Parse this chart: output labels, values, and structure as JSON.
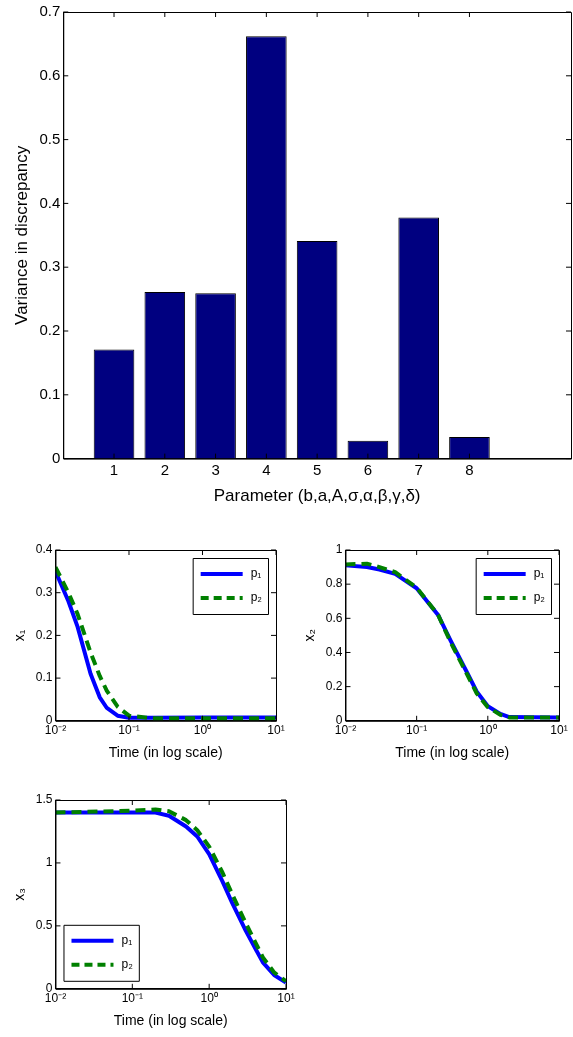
{
  "chart_data": [
    {
      "type": "bar",
      "xlabel": "Parameter (b,a,A,σ,α,β,γ,δ)",
      "ylabel": "Variance in discrepancy",
      "x": [
        1,
        2,
        3,
        4,
        5,
        6,
        7,
        8
      ],
      "values": [
        0.171,
        0.261,
        0.259,
        0.662,
        0.341,
        0.028,
        0.378,
        0.034
      ],
      "color": "#000080",
      "xlim": [
        0,
        10
      ],
      "xticks": [
        1,
        2,
        3,
        4,
        5,
        6,
        7,
        8
      ],
      "ylim": [
        0,
        0.7
      ],
      "yticks": [
        0,
        0.1,
        0.2,
        0.3,
        0.4,
        0.5,
        0.6,
        0.7
      ]
    },
    {
      "type": "line",
      "xlabel": "Time (in log scale)",
      "ylabel": "x₁",
      "log": "x",
      "legend": "top right",
      "x": [
        0.01,
        0.015,
        0.02,
        0.03,
        0.04,
        0.05,
        0.07,
        0.1,
        0.2,
        1,
        10
      ],
      "xlim": [
        0.01,
        10
      ],
      "xticks": [
        {
          "value": 0.01,
          "label": "10⁻²"
        },
        {
          "value": 0.1,
          "label": "10⁻¹"
        },
        {
          "value": 1,
          "label": "10⁰"
        },
        {
          "value": 10,
          "label": "10¹"
        }
      ],
      "ylim": [
        0,
        0.4
      ],
      "yticks": [
        0,
        0.1,
        0.2,
        0.3,
        0.4
      ],
      "series": [
        {
          "name": "p₁",
          "color": "#0000ff",
          "line_style": "solid",
          "values": [
            0.35,
            0.28,
            0.22,
            0.11,
            0.055,
            0.03,
            0.012,
            0.007,
            0.007,
            0.008,
            0.008
          ]
        },
        {
          "name": "p₂",
          "color": "#008000",
          "line_style": "dashed",
          "values": [
            0.36,
            0.3,
            0.25,
            0.16,
            0.105,
            0.07,
            0.033,
            0.012,
            0.006,
            0.006,
            0.006
          ]
        }
      ]
    },
    {
      "type": "line",
      "xlabel": "Time (in log scale)",
      "ylabel": "x₂",
      "log": "x",
      "legend": "top right",
      "x": [
        0.01,
        0.02,
        0.03,
        0.05,
        0.1,
        0.2,
        0.3,
        0.5,
        0.7,
        1,
        1.5,
        2,
        10
      ],
      "xlim": [
        0.01,
        10
      ],
      "xticks": [
        {
          "value": 0.01,
          "label": "10⁻²"
        },
        {
          "value": 0.1,
          "label": "10⁻¹"
        },
        {
          "value": 1,
          "label": "10⁰"
        },
        {
          "value": 10,
          "label": "10¹"
        }
      ],
      "ylim": [
        0,
        1
      ],
      "yticks": [
        0,
        0.2,
        0.4,
        0.6,
        0.8,
        1
      ],
      "series": [
        {
          "name": "p₁",
          "color": "#0000ff",
          "line_style": "solid",
          "values": [
            0.91,
            0.9,
            0.886,
            0.86,
            0.776,
            0.62,
            0.47,
            0.29,
            0.17,
            0.086,
            0.04,
            0.022,
            0.02
          ]
        },
        {
          "name": "p₂",
          "color": "#008000",
          "line_style": "dashed",
          "values": [
            0.915,
            0.92,
            0.9,
            0.87,
            0.78,
            0.62,
            0.46,
            0.28,
            0.16,
            0.08,
            0.035,
            0.02,
            0.02
          ]
        }
      ]
    },
    {
      "type": "line",
      "xlabel": "Time (in log scale)",
      "ylabel": "x₃",
      "log": "x",
      "legend": "bottom left",
      "x": [
        0.01,
        0.1,
        0.2,
        0.3,
        0.5,
        0.7,
        1,
        1.5,
        2,
        3,
        5,
        7,
        10
      ],
      "xlim": [
        0.01,
        10
      ],
      "xticks": [
        {
          "value": 0.01,
          "label": "10⁻²"
        },
        {
          "value": 0.1,
          "label": "10⁻¹"
        },
        {
          "value": 1,
          "label": "10⁰"
        },
        {
          "value": 10,
          "label": "10¹"
        }
      ],
      "ylim": [
        0,
        1.5
      ],
      "yticks": [
        0,
        0.5,
        1,
        1.5
      ],
      "series": [
        {
          "name": "p₁",
          "color": "#0000ff",
          "line_style": "solid",
          "values": [
            1.4,
            1.4,
            1.4,
            1.375,
            1.29,
            1.21,
            1.07,
            0.85,
            0.68,
            0.46,
            0.21,
            0.11,
            0.05
          ]
        },
        {
          "name": "p₂",
          "color": "#008000",
          "line_style": "dashed",
          "values": [
            1.4,
            1.415,
            1.425,
            1.41,
            1.34,
            1.26,
            1.13,
            0.92,
            0.75,
            0.52,
            0.25,
            0.13,
            0.06
          ]
        }
      ]
    }
  ]
}
